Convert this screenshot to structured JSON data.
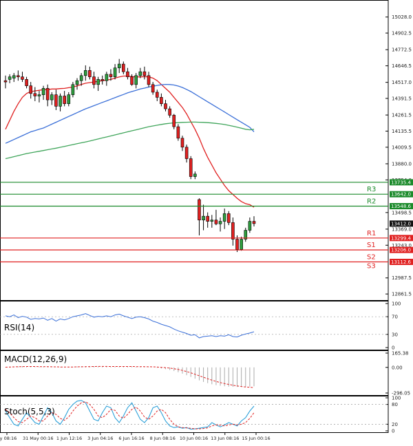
{
  "chart_data": [
    {
      "type": "candlestick",
      "y_ticks": [
        "15028.0",
        "14902.5",
        "14772.5",
        "14646.5",
        "14517.0",
        "14391.5",
        "14261.5",
        "14135.5",
        "14009.5",
        "13880.0",
        "13754.0",
        "13498.5",
        "13369.0",
        "13243.0",
        "12987.5",
        "12861.5"
      ],
      "ylim": [
        12830,
        15145
      ],
      "x_ticks": [
        "ay 08:16",
        "31 May 00:16",
        "1 Jun 12:16",
        "3 Jun 04:16",
        "6 Jun 16:16",
        "8 Jun 08:16",
        "10 Jun 00:16",
        "13 Jun 08:16",
        "15 Jun 00:16"
      ],
      "candles": [
        {
          "o": 14530,
          "h": 14570,
          "l": 14470,
          "c": 14520
        },
        {
          "o": 14540,
          "h": 14580,
          "l": 14510,
          "c": 14560
        },
        {
          "o": 14550,
          "h": 14590,
          "l": 14520,
          "c": 14570
        },
        {
          "o": 14570,
          "h": 14610,
          "l": 14530,
          "c": 14560
        },
        {
          "o": 14560,
          "h": 14600,
          "l": 14520,
          "c": 14540
        },
        {
          "o": 14540,
          "h": 14560,
          "l": 14470,
          "c": 14490
        },
        {
          "o": 14490,
          "h": 14520,
          "l": 14390,
          "c": 14430
        },
        {
          "o": 14430,
          "h": 14480,
          "l": 14370,
          "c": 14410
        },
        {
          "o": 14410,
          "h": 14450,
          "l": 14360,
          "c": 14420
        },
        {
          "o": 14420,
          "h": 14490,
          "l": 14380,
          "c": 14470
        },
        {
          "o": 14470,
          "h": 14500,
          "l": 14330,
          "c": 14380
        },
        {
          "o": 14380,
          "h": 14440,
          "l": 14340,
          "c": 14420
        },
        {
          "o": 14420,
          "h": 14460,
          "l": 14300,
          "c": 14330
        },
        {
          "o": 14330,
          "h": 14430,
          "l": 14290,
          "c": 14410
        },
        {
          "o": 14410,
          "h": 14450,
          "l": 14330,
          "c": 14350
        },
        {
          "o": 14350,
          "h": 14440,
          "l": 14330,
          "c": 14420
        },
        {
          "o": 14420,
          "h": 14520,
          "l": 14400,
          "c": 14500
        },
        {
          "o": 14500,
          "h": 14550,
          "l": 14460,
          "c": 14530
        },
        {
          "o": 14530,
          "h": 14590,
          "l": 14490,
          "c": 14570
        },
        {
          "o": 14570,
          "h": 14650,
          "l": 14530,
          "c": 14610
        },
        {
          "o": 14610,
          "h": 14640,
          "l": 14540,
          "c": 14560
        },
        {
          "o": 14560,
          "h": 14600,
          "l": 14470,
          "c": 14500
        },
        {
          "o": 14500,
          "h": 14560,
          "l": 14450,
          "c": 14540
        },
        {
          "o": 14540,
          "h": 14570,
          "l": 14500,
          "c": 14530
        },
        {
          "o": 14530,
          "h": 14600,
          "l": 14490,
          "c": 14580
        },
        {
          "o": 14580,
          "h": 14620,
          "l": 14530,
          "c": 14560
        },
        {
          "o": 14560,
          "h": 14660,
          "l": 14540,
          "c": 14630
        },
        {
          "o": 14630,
          "h": 14700,
          "l": 14590,
          "c": 14660
        },
        {
          "o": 14660,
          "h": 14680,
          "l": 14580,
          "c": 14600
        },
        {
          "o": 14600,
          "h": 14630,
          "l": 14540,
          "c": 14560
        },
        {
          "o": 14560,
          "h": 14580,
          "l": 14490,
          "c": 14500
        },
        {
          "o": 14500,
          "h": 14590,
          "l": 14470,
          "c": 14570
        },
        {
          "o": 14570,
          "h": 14630,
          "l": 14550,
          "c": 14600
        },
        {
          "o": 14600,
          "h": 14640,
          "l": 14540,
          "c": 14570
        },
        {
          "o": 14570,
          "h": 14600,
          "l": 14480,
          "c": 14500
        },
        {
          "o": 14500,
          "h": 14520,
          "l": 14420,
          "c": 14440
        },
        {
          "o": 14440,
          "h": 14460,
          "l": 14370,
          "c": 14400
        },
        {
          "o": 14400,
          "h": 14430,
          "l": 14330,
          "c": 14350
        },
        {
          "o": 14350,
          "h": 14380,
          "l": 14290,
          "c": 14310
        },
        {
          "o": 14310,
          "h": 14330,
          "l": 14240,
          "c": 14260
        },
        {
          "o": 14260,
          "h": 14270,
          "l": 14150,
          "c": 14170
        },
        {
          "o": 14170,
          "h": 14190,
          "l": 14060,
          "c": 14080
        },
        {
          "o": 14080,
          "h": 14100,
          "l": 13980,
          "c": 14010
        },
        {
          "o": 14010,
          "h": 14030,
          "l": 13890,
          "c": 13920
        },
        {
          "o": 13920,
          "h": 13940,
          "l": 13760,
          "c": 13780
        },
        {
          "o": 13780,
          "h": 13820,
          "l": 13760,
          "c": 13800
        },
        {
          "o": 13600,
          "h": 13610,
          "l": 13320,
          "c": 13440
        },
        {
          "o": 13440,
          "h": 13560,
          "l": 13360,
          "c": 13470
        },
        {
          "o": 13470,
          "h": 13500,
          "l": 13380,
          "c": 13430
        },
        {
          "o": 13430,
          "h": 13480,
          "l": 13380,
          "c": 13440
        },
        {
          "o": 13440,
          "h": 13520,
          "l": 13400,
          "c": 13410
        },
        {
          "o": 13410,
          "h": 13460,
          "l": 13350,
          "c": 13430
        },
        {
          "o": 13430,
          "h": 13530,
          "l": 13370,
          "c": 13490
        },
        {
          "o": 13490,
          "h": 13510,
          "l": 13400,
          "c": 13420
        },
        {
          "o": 13420,
          "h": 13460,
          "l": 13240,
          "c": 13290
        },
        {
          "o": 13290,
          "h": 13320,
          "l": 13190,
          "c": 13210
        },
        {
          "o": 13210,
          "h": 13310,
          "l": 13200,
          "c": 13290
        },
        {
          "o": 13290,
          "h": 13380,
          "l": 13270,
          "c": 13360
        },
        {
          "o": 13360,
          "h": 13460,
          "l": 13340,
          "c": 13430
        },
        {
          "o": 13430,
          "h": 13470,
          "l": 13390,
          "c": 13412
        }
      ],
      "lines": [
        {
          "color": "#e02020",
          "values": [
            14150,
            14220,
            14290,
            14350,
            14400,
            14430,
            14445,
            14450,
            14455,
            14460,
            14460,
            14465,
            14465,
            14468,
            14470,
            14475,
            14480,
            14490,
            14500,
            14510,
            14515,
            14520,
            14525,
            14530,
            14535,
            14540,
            14550,
            14560,
            14566,
            14566,
            14562,
            14560,
            14560,
            14562,
            14560,
            14550,
            14530,
            14500,
            14470,
            14440,
            14400,
            14360,
            14320,
            14270,
            14210,
            14150,
            14080,
            14000,
            13930,
            13870,
            13810,
            13760,
            13710,
            13670,
            13640,
            13610,
            13585,
            13568,
            13560,
            13540
          ]
        },
        {
          "color": "#3a6fd8",
          "values": [
            14040,
            14055,
            14070,
            14085,
            14100,
            14115,
            14130,
            14140,
            14150,
            14160,
            14175,
            14190,
            14205,
            14220,
            14235,
            14250,
            14265,
            14280,
            14295,
            14310,
            14322,
            14335,
            14347,
            14360,
            14372,
            14385,
            14397,
            14410,
            14422,
            14435,
            14445,
            14455,
            14465,
            14472,
            14480,
            14487,
            14493,
            14498,
            14501,
            14500,
            14496,
            14488,
            14477,
            14462,
            14445,
            14425,
            14405,
            14385,
            14365,
            14345,
            14325,
            14305,
            14285,
            14265,
            14245,
            14225,
            14205,
            14185,
            14165,
            14130
          ]
        },
        {
          "color": "#3fa55a",
          "values": [
            13920,
            13928,
            13936,
            13944,
            13952,
            13960,
            13966,
            13972,
            13978,
            13984,
            13990,
            13996,
            14002,
            14009,
            14016,
            14023,
            14030,
            14037,
            14044,
            14051,
            14058,
            14066,
            14074,
            14082,
            14090,
            14098,
            14106,
            14114,
            14122,
            14130,
            14138,
            14146,
            14154,
            14162,
            14170,
            14176,
            14182,
            14188,
            14193,
            14197,
            14200,
            14202,
            14204,
            14205,
            14206,
            14206,
            14205,
            14204,
            14202,
            14199,
            14196,
            14192,
            14187,
            14181,
            14174,
            14166,
            14158,
            14150,
            14146,
            14150
          ]
        }
      ],
      "levels": [
        {
          "value": 13735.4,
          "label": "13735.4",
          "color": "#1a8a2a",
          "tag": ""
        },
        {
          "value": 13642.0,
          "label": "13642.0",
          "color": "#1a8a2a",
          "tag": "R3"
        },
        {
          "value": 13548.6,
          "label": "13548.6",
          "color": "#1a8a2a",
          "tag": "R2"
        },
        {
          "value": 13299.4,
          "label": "13299.4",
          "color": "#e02020",
          "tag": "R1"
        },
        {
          "value": 13206.0,
          "label": "13206.0",
          "color": "#e02020",
          "tag": "S1"
        },
        {
          "value": 13112.6,
          "label": "13112.6",
          "color": "#e02020",
          "tag": "S2"
        }
      ],
      "extra_tag": {
        "text": "S3",
        "color": "#e02020"
      },
      "last_price": "13412.0"
    },
    {
      "type": "line",
      "title": "RSI(14)",
      "y_ticks": [
        "100",
        "70",
        "30",
        "0"
      ],
      "ylim": [
        0,
        100
      ],
      "color": "#3a6fd8",
      "values": [
        72,
        70,
        74,
        68,
        71,
        69,
        64,
        66,
        65,
        67,
        62,
        66,
        60,
        65,
        63,
        66,
        70,
        72,
        74,
        77,
        73,
        69,
        71,
        70,
        72,
        70,
        74,
        76,
        72,
        69,
        66,
        69,
        70,
        68,
        65,
        60,
        57,
        53,
        50,
        47,
        42,
        38,
        35,
        32,
        28,
        29,
        22,
        25,
        26,
        27,
        25,
        27,
        26,
        29,
        25,
        24,
        28,
        31,
        33,
        36
      ]
    },
    {
      "type": "bar",
      "title": "MACD(12,26,9)",
      "y_ticks": [
        "165.38",
        "0.00",
        "-296.05"
      ],
      "ylim": [
        -296.05,
        165.38
      ],
      "values": [
        5,
        8,
        10,
        12,
        13,
        12,
        10,
        8,
        6,
        5,
        4,
        3,
        3,
        4,
        5,
        6,
        8,
        10,
        12,
        14,
        15,
        14,
        12,
        10,
        9,
        8,
        9,
        10,
        11,
        10,
        9,
        7,
        6,
        5,
        3,
        0,
        -5,
        -12,
        -20,
        -30,
        -42,
        -56,
        -72,
        -90,
        -110,
        -130,
        -150,
        -168,
        -182,
        -195,
        -205,
        -212,
        -218,
        -222,
        -225,
        -226,
        -226,
        -224,
        -221,
        -218
      ],
      "signal": [
        2,
        4,
        6,
        8,
        9,
        10,
        10,
        10,
        9,
        9,
        8,
        7,
        6,
        5,
        5,
        5,
        5,
        6,
        7,
        8,
        9,
        10,
        11,
        11,
        11,
        10,
        10,
        10,
        10,
        10,
        10,
        9,
        9,
        8,
        7,
        6,
        4,
        1,
        -3,
        -8,
        -15,
        -24,
        -35,
        -48,
        -63,
        -80,
        -97,
        -114,
        -131,
        -147,
        -162,
        -175,
        -187,
        -197,
        -206,
        -214,
        -221,
        -226,
        -230,
        -233
      ]
    },
    {
      "type": "line",
      "title": "Stoch(5,5,3)",
      "y_ticks": [
        "100",
        "80",
        "20",
        "0"
      ],
      "ylim": [
        0,
        100
      ],
      "main": [
        60,
        40,
        20,
        15,
        35,
        55,
        40,
        25,
        20,
        45,
        70,
        55,
        30,
        20,
        40,
        65,
        80,
        90,
        92,
        85,
        60,
        35,
        30,
        55,
        75,
        70,
        40,
        25,
        45,
        70,
        85,
        60,
        35,
        25,
        40,
        70,
        75,
        55,
        30,
        15,
        10,
        12,
        8,
        10,
        5,
        6,
        8,
        10,
        12,
        25,
        18,
        12,
        18,
        25,
        20,
        15,
        30,
        40,
        60,
        75
      ],
      "signal": [
        65,
        55,
        40,
        28,
        25,
        35,
        45,
        40,
        30,
        30,
        45,
        55,
        50,
        38,
        32,
        42,
        60,
        75,
        85,
        88,
        80,
        65,
        45,
        40,
        50,
        65,
        62,
        45,
        38,
        50,
        65,
        72,
        60,
        42,
        35,
        45,
        60,
        65,
        55,
        35,
        20,
        12,
        10,
        9,
        8,
        6,
        6,
        7,
        9,
        15,
        18,
        17,
        15,
        18,
        20,
        18,
        20,
        25,
        38,
        55
      ]
    }
  ]
}
